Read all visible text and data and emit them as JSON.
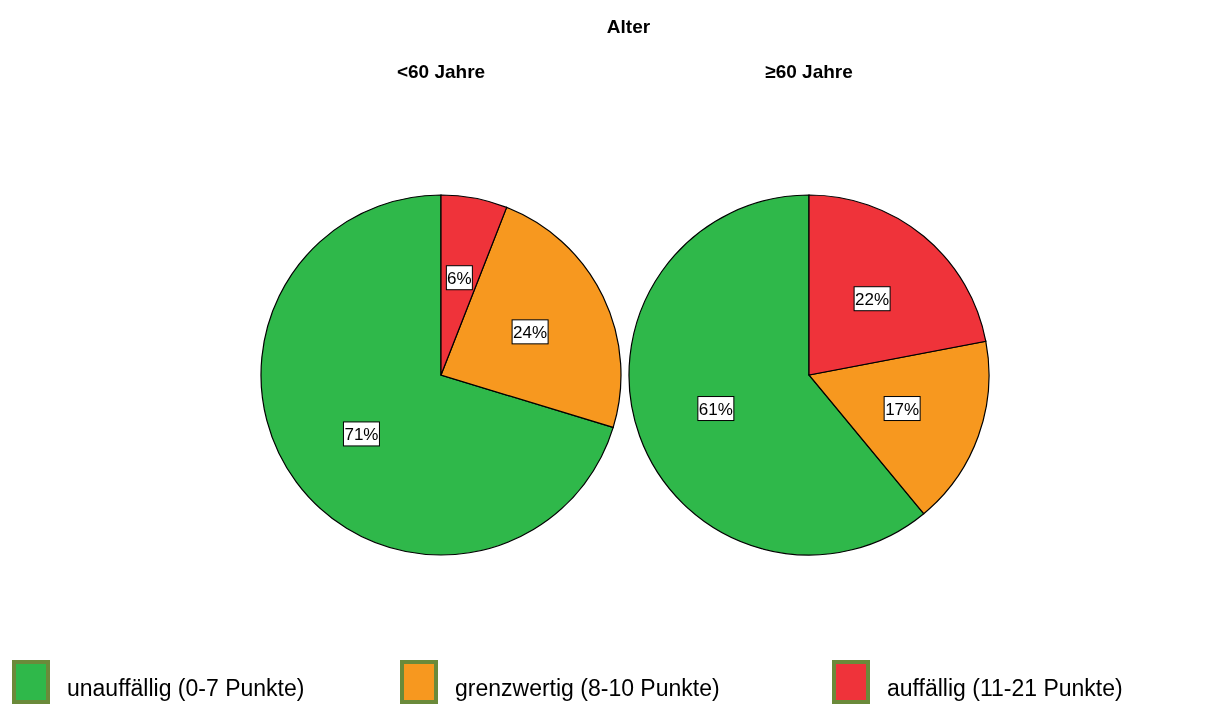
{
  "chart_data": [
    {
      "type": "pie",
      "title": "<60 Jahre",
      "annotations": [
        "Alter"
      ],
      "categories": [
        "unauffällig (0-7 Punkte)",
        "grenzwertig (8-10 Punkte)",
        "auffällig (11-21 Punkte)"
      ],
      "values": [
        71,
        24,
        6
      ],
      "value_labels": [
        "71%",
        "24%",
        "6%"
      ],
      "colors": [
        "#2fb84a",
        "#f7981f",
        "#ef333a"
      ],
      "legend": "bottom"
    },
    {
      "type": "pie",
      "title": "≥60 Jahre",
      "categories": [
        null,
        null,
        null
      ],
      "values": [
        61,
        17,
        22
      ],
      "value_labels": [
        "61%",
        "17%",
        "22%"
      ],
      "colors": [
        "#2fb84a",
        "#f7981f",
        "#ef333a"
      ]
    }
  ]
}
